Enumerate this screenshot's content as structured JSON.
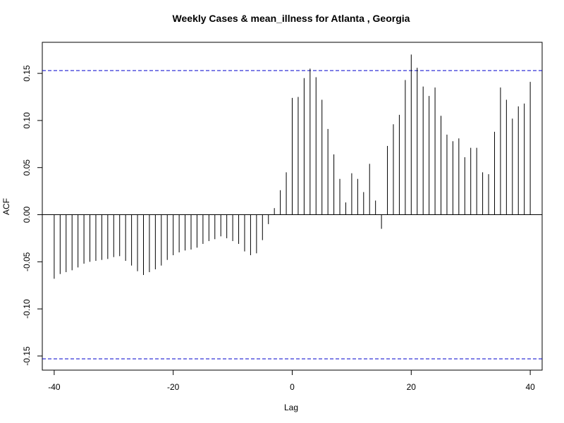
{
  "chart_data": {
    "type": "bar",
    "title": "Weekly Cases & mean_illness for Atlanta , Georgia",
    "xlabel": "Lag",
    "ylabel": "ACF",
    "xlim": [
      -42,
      42
    ],
    "ylim": [
      -0.165,
      0.183
    ],
    "x_ticks": [
      -40,
      -20,
      0,
      20,
      40
    ],
    "x_tick_labels": [
      "-40",
      "-20",
      "0",
      "20",
      "40"
    ],
    "y_ticks": [
      -0.15,
      -0.1,
      -0.05,
      0.0,
      0.05,
      0.1,
      0.15
    ],
    "y_tick_labels": [
      "-0.15",
      "-0.10",
      "-0.05",
      "0.00",
      "0.05",
      "0.10",
      "0.15"
    ],
    "confidence_limit": 0.153,
    "grid": false,
    "colors": {
      "bars": "#000000",
      "confidence_lines": "#0000cc",
      "zero_line": "#000000"
    },
    "lags": [
      -40,
      -39,
      -38,
      -37,
      -36,
      -35,
      -34,
      -33,
      -32,
      -31,
      -30,
      -29,
      -28,
      -27,
      -26,
      -25,
      -24,
      -23,
      -22,
      -21,
      -20,
      -19,
      -18,
      -17,
      -16,
      -15,
      -14,
      -13,
      -12,
      -11,
      -10,
      -9,
      -8,
      -7,
      -6,
      -5,
      -4,
      -3,
      -2,
      -1,
      0,
      1,
      2,
      3,
      4,
      5,
      6,
      7,
      8,
      9,
      10,
      11,
      12,
      13,
      14,
      15,
      16,
      17,
      18,
      19,
      20,
      21,
      22,
      23,
      24,
      25,
      26,
      27,
      28,
      29,
      30,
      31,
      32,
      33,
      34,
      35,
      36,
      37,
      38,
      39,
      40
    ],
    "values": [
      -0.068,
      -0.063,
      -0.061,
      -0.059,
      -0.056,
      -0.052,
      -0.05,
      -0.049,
      -0.048,
      -0.047,
      -0.045,
      -0.044,
      -0.049,
      -0.054,
      -0.06,
      -0.064,
      -0.061,
      -0.058,
      -0.054,
      -0.048,
      -0.043,
      -0.04,
      -0.038,
      -0.037,
      -0.035,
      -0.031,
      -0.028,
      -0.026,
      -0.023,
      -0.025,
      -0.028,
      -0.031,
      -0.039,
      -0.043,
      -0.041,
      -0.027,
      -0.01,
      0.007,
      0.026,
      0.045,
      0.124,
      0.125,
      0.145,
      0.155,
      0.146,
      0.122,
      0.091,
      0.064,
      0.038,
      0.013,
      0.044,
      0.038,
      0.024,
      0.054,
      0.015,
      -0.015,
      0.073,
      0.096,
      0.106,
      0.143,
      0.17,
      0.156,
      0.136,
      0.126,
      0.135,
      0.105,
      0.085,
      0.078,
      0.081,
      0.061,
      0.071,
      0.071,
      0.045,
      0.043,
      0.088,
      0.135,
      0.122,
      0.102,
      0.115,
      0.118,
      0.141
    ]
  }
}
